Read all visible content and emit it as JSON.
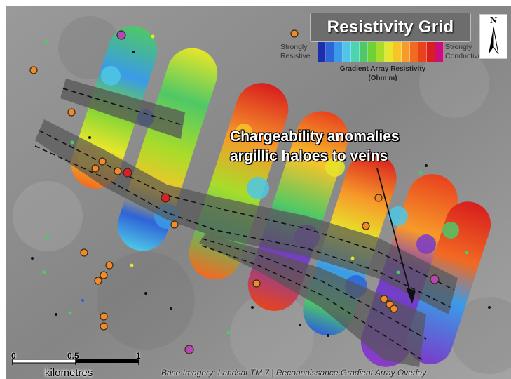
{
  "map": {
    "legend": {
      "title": "Resistivity Grid",
      "left_label": "Strongly Resistive",
      "right_label": "Strongly Conductive",
      "scale_title": "Gradient Array Resistivity (Ohm m)",
      "colors": [
        "#1a2fb0",
        "#2f63d8",
        "#3a9be8",
        "#4ec7e6",
        "#4ed2b0",
        "#4fc866",
        "#6fd13a",
        "#a9dc2a",
        "#e6e62a",
        "#f7c42a",
        "#f79a2a",
        "#f26a22",
        "#e8421e",
        "#d81e1e",
        "#c8107a"
      ]
    },
    "north_arrow": "N",
    "annotation": {
      "line1": "Chargeability anomalies",
      "line2": "argillic haloes to veins"
    },
    "scale_bar": {
      "tick_labels": [
        "0",
        "0.5",
        "1"
      ],
      "unit": "kilometres"
    },
    "caption": "Base Imagery: Landsat TM 7 | Reconnaissance Gradient Array Overlay"
  }
}
